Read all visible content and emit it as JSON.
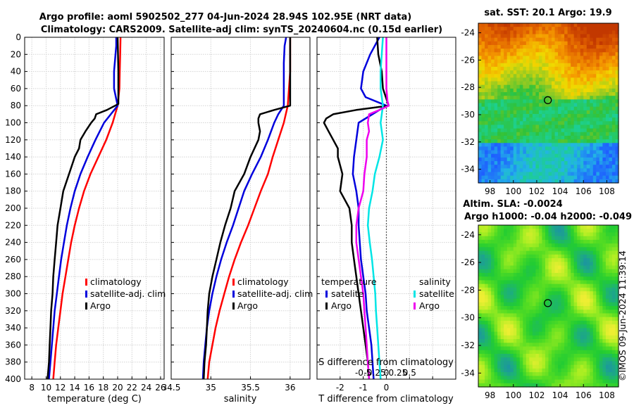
{
  "title_line1": "Argo profile: aoml 5902502_277 04-Jun-2024 28.94S 102.95E (NRT data)",
  "title_line2": "Climatology: CARS2009. Satellite-adj clim: synTS_20240604.nc (0.15d earlier)",
  "timestamp": "©IMOS 09-Jun-2024 11:39:14",
  "colors": {
    "climatology": "#ff0000",
    "satellite": "#0000dd",
    "argo": "#000000",
    "satellite_salinity": "#00e5e5",
    "argo_salinity": "#ee00ee",
    "zero_line": "#555555"
  },
  "chart_data": [
    {
      "id": "temperature",
      "type": "line",
      "xlabel": "temperature (deg C)",
      "ylabel": "depth",
      "xlim": [
        7,
        26.5
      ],
      "ylim": [
        400,
        0
      ],
      "xticks": [
        8,
        10,
        12,
        14,
        16,
        18,
        20,
        22,
        24,
        26
      ],
      "yticks": [
        0,
        20,
        40,
        60,
        80,
        100,
        120,
        140,
        160,
        180,
        200,
        220,
        240,
        260,
        280,
        300,
        320,
        340,
        360,
        380,
        400
      ],
      "grid": true,
      "legend": [
        "climatology",
        "satellite-adj. clim",
        "Argo"
      ],
      "series": [
        {
          "name": "climatology",
          "color": "#ff0000",
          "depth": [
            0,
            20,
            40,
            60,
            80,
            100,
            120,
            140,
            160,
            180,
            200,
            220,
            240,
            260,
            280,
            300,
            320,
            340,
            360,
            380,
            400
          ],
          "values": [
            20.4,
            20.35,
            20.3,
            20.25,
            20.0,
            19.3,
            18.4,
            17.3,
            16.2,
            15.3,
            14.6,
            14.0,
            13.5,
            13.1,
            12.7,
            12.3,
            12.0,
            11.7,
            11.4,
            11.2,
            11.0
          ]
        },
        {
          "name": "satellite-adj. clim",
          "color": "#0000dd",
          "depth": [
            0,
            10,
            40,
            60,
            80,
            100,
            120,
            140,
            160,
            180,
            200,
            220,
            240,
            260,
            280,
            300,
            320,
            340,
            360,
            380,
            400
          ],
          "values": [
            19.8,
            19.8,
            19.5,
            19.5,
            20.0,
            18.1,
            16.9,
            15.8,
            14.8,
            14.0,
            13.4,
            12.9,
            12.5,
            12.1,
            11.8,
            11.5,
            11.2,
            11.0,
            10.8,
            10.6,
            10.4
          ]
        },
        {
          "name": "Argo",
          "color": "#000000",
          "depth": [
            0,
            20,
            40,
            60,
            78,
            85,
            90,
            95,
            100,
            110,
            120,
            130,
            140,
            160,
            180,
            200,
            220,
            240,
            260,
            280,
            300,
            320,
            340,
            360,
            380,
            400
          ],
          "values": [
            20.0,
            20.05,
            20.1,
            20.1,
            20.1,
            18.5,
            17.0,
            16.8,
            16.3,
            15.5,
            14.8,
            14.6,
            14.0,
            13.2,
            12.4,
            12.0,
            11.6,
            11.4,
            11.2,
            11.0,
            10.9,
            10.7,
            10.6,
            10.5,
            10.4,
            10.2
          ]
        }
      ]
    },
    {
      "id": "salinity",
      "type": "line",
      "xlabel": "salinity",
      "ylabel": "depth",
      "xlim": [
        34.5,
        36.25
      ],
      "ylim": [
        400,
        0
      ],
      "xticks": [
        34.5,
        35,
        35.5,
        36
      ],
      "xticklabels": [
        "34.5",
        "35",
        "35.5",
        "36"
      ],
      "grid": true,
      "legend": [
        "climatology",
        "satellite-adj. clim",
        "Argo"
      ],
      "series": [
        {
          "name": "climatology",
          "color": "#ff0000",
          "depth": [
            0,
            40,
            80,
            100,
            120,
            140,
            160,
            180,
            200,
            220,
            240,
            260,
            280,
            300,
            320,
            340,
            360,
            380,
            400
          ],
          "values": [
            36.0,
            36.0,
            35.97,
            35.92,
            35.85,
            35.78,
            35.72,
            35.63,
            35.55,
            35.47,
            35.38,
            35.3,
            35.23,
            35.17,
            35.11,
            35.06,
            35.02,
            34.98,
            34.96
          ]
        },
        {
          "name": "satellite-adj. clim",
          "color": "#0000dd",
          "depth": [
            0,
            10,
            30,
            80,
            90,
            100,
            120,
            140,
            160,
            180,
            200,
            220,
            240,
            260,
            280,
            300,
            320,
            340,
            360,
            380,
            400
          ],
          "values": [
            35.95,
            35.93,
            35.92,
            35.92,
            35.85,
            35.8,
            35.72,
            35.63,
            35.52,
            35.42,
            35.35,
            35.28,
            35.2,
            35.13,
            35.07,
            35.02,
            34.98,
            34.95,
            34.93,
            34.91,
            34.9
          ]
        },
        {
          "name": "Argo",
          "color": "#000000",
          "depth": [
            0,
            20,
            40,
            60,
            80,
            85,
            90,
            95,
            100,
            110,
            120,
            130,
            140,
            160,
            180,
            200,
            220,
            240,
            260,
            280,
            300,
            320,
            340,
            360,
            380,
            400
          ],
          "values": [
            36.0,
            36.0,
            36.0,
            36.0,
            36.0,
            35.8,
            35.62,
            35.6,
            35.6,
            35.62,
            35.6,
            35.55,
            35.5,
            35.42,
            35.3,
            35.25,
            35.18,
            35.12,
            35.07,
            35.02,
            34.98,
            34.96,
            34.95,
            34.94,
            34.92,
            34.91
          ]
        }
      ]
    },
    {
      "id": "difference",
      "type": "line",
      "xlabel": "T difference from climatology",
      "xlabel_top": "S difference from climatology",
      "xlim": [
        -3,
        3
      ],
      "ylim": [
        400,
        0
      ],
      "xticks": [
        -2,
        -1,
        0,
        1,
        2
      ],
      "xticklabels": [
        "-2",
        "-1",
        "0",
        "",
        ""
      ],
      "sticks": [
        -1,
        -0.5,
        0,
        0.5,
        1
      ],
      "sticklabels": [
        "-0.5",
        "-0.25",
        "0",
        "0.25",
        "0.5"
      ],
      "grid": true,
      "legend_temperature": {
        "title": "temperature",
        "items": [
          "satelite",
          "Argo"
        ]
      },
      "legend_salinity": {
        "title": "salinity",
        "items": [
          "satellite",
          "Argo"
        ]
      },
      "series": [
        {
          "name": "T satellite",
          "color": "#0000dd",
          "depth": [
            0,
            20,
            40,
            60,
            70,
            80,
            100,
            120,
            140,
            160,
            180,
            200,
            220,
            240,
            260,
            280,
            300,
            320,
            340,
            360,
            380,
            400
          ],
          "values": [
            -0.3,
            -0.7,
            -1.0,
            -1.1,
            -0.9,
            0.0,
            -1.2,
            -1.3,
            -1.4,
            -1.45,
            -1.3,
            -1.2,
            -1.2,
            -1.15,
            -1.1,
            -1.0,
            -0.9,
            -0.85,
            -0.75,
            -0.65,
            -0.6,
            -0.55
          ]
        },
        {
          "name": "T Argo",
          "color": "#000000",
          "depth": [
            0,
            20,
            40,
            60,
            80,
            85,
            90,
            95,
            100,
            110,
            120,
            130,
            140,
            160,
            180,
            200,
            220,
            240,
            260,
            280,
            300,
            320,
            340,
            360,
            380,
            400
          ],
          "values": [
            -0.4,
            -0.35,
            -0.2,
            -0.15,
            0.1,
            -1.3,
            -2.3,
            -2.6,
            -2.7,
            -2.5,
            -2.3,
            -2.1,
            -2.1,
            -1.9,
            -2.0,
            -1.6,
            -1.5,
            -1.5,
            -1.4,
            -1.3,
            -1.2,
            -1.1,
            -1.0,
            -0.9,
            -0.8,
            -0.75
          ]
        },
        {
          "name": "S satellite",
          "color": "#00e5e5",
          "depth": [
            0,
            20,
            40,
            60,
            80,
            100,
            120,
            140,
            160,
            180,
            200,
            220,
            240,
            260,
            280,
            300,
            320,
            340,
            360,
            380,
            400
          ],
          "values": [
            -0.15,
            -0.2,
            -0.25,
            -0.25,
            -0.15,
            -0.25,
            -0.15,
            -0.3,
            -0.5,
            -0.6,
            -0.75,
            -0.8,
            -0.72,
            -0.62,
            -0.55,
            -0.48,
            -0.45,
            -0.4,
            -0.35,
            -0.3,
            -0.25
          ]
        },
        {
          "name": "S Argo",
          "color": "#ee00ee",
          "depth": [
            0,
            20,
            40,
            60,
            75,
            80,
            85,
            90,
            100,
            110,
            120,
            140,
            160,
            180,
            200,
            220,
            240,
            260,
            280,
            300,
            320,
            340,
            360,
            380,
            400
          ],
          "values": [
            0.0,
            0.0,
            0.0,
            0.0,
            0.05,
            0.1,
            -0.3,
            -0.75,
            -0.8,
            -0.75,
            -0.85,
            -0.85,
            -0.95,
            -1.0,
            -1.2,
            -1.3,
            -1.3,
            -1.2,
            -1.1,
            -1.0,
            -0.95,
            -0.9,
            -0.85,
            -0.8,
            -0.75
          ]
        }
      ]
    },
    {
      "id": "sst_map",
      "type": "heatmap",
      "title": "sat. SST: 20.1 Argo: 19.9",
      "xlim": [
        97,
        109
      ],
      "ylim": [
        -35,
        -23.3
      ],
      "xticks": [
        98,
        100,
        102,
        104,
        106,
        108
      ],
      "yticks": [
        -24,
        -26,
        -28,
        -30,
        -32,
        -34
      ],
      "marker": {
        "lon": 102.95,
        "lat": -28.94
      },
      "colorscale": [
        "#1f5fff",
        "#22b4e6",
        "#1dd08c",
        "#2fc23a",
        "#9acb20",
        "#f0d900",
        "#f59a00",
        "#e06000",
        "#c23800"
      ]
    },
    {
      "id": "sla_map",
      "type": "heatmap",
      "title": "Altim. SLA: -0.0024",
      "subtitle": "Argo h1000: -0.04 h2000: -0.049",
      "xlim": [
        97,
        109
      ],
      "ylim": [
        -35,
        -23.3
      ],
      "xticks": [
        98,
        100,
        102,
        104,
        106,
        108
      ],
      "yticks": [
        -24,
        -26,
        -28,
        -30,
        -32,
        -34
      ],
      "marker": {
        "lon": 102.95,
        "lat": -28.94
      },
      "colorscale": [
        "#1c8ab0",
        "#1db07a",
        "#22cc33",
        "#55dd22",
        "#aaee22",
        "#eeee33"
      ]
    }
  ]
}
